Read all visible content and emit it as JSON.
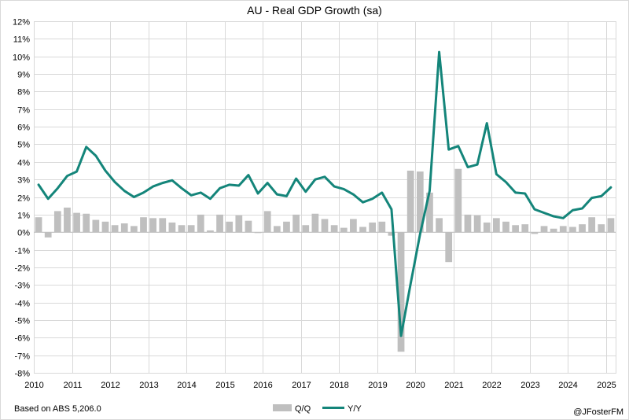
{
  "chart_data": {
    "type": "bar",
    "title": "AU - Real GDP Growth (sa)",
    "xlabel": "",
    "ylabel": "",
    "ylim": [
      -8,
      12
    ],
    "y_ticks": [
      "12%",
      "11%",
      "10%",
      "9%",
      "8%",
      "7%",
      "6%",
      "5%",
      "4%",
      "3%",
      "2%",
      "1%",
      "0%",
      "-1%",
      "-2%",
      "-3%",
      "-4%",
      "-5%",
      "-6%",
      "-7%",
      "-8%"
    ],
    "x_ticks": [
      "2010",
      "2011",
      "2012",
      "2013",
      "2014",
      "2015",
      "2016",
      "2017",
      "2018",
      "2019",
      "2020",
      "2021",
      "2022",
      "2023",
      "2024",
      "2025"
    ],
    "x": [
      "2010Q1",
      "2010Q2",
      "2010Q3",
      "2010Q4",
      "2011Q1",
      "2011Q2",
      "2011Q3",
      "2011Q4",
      "2012Q1",
      "2012Q2",
      "2012Q3",
      "2012Q4",
      "2013Q1",
      "2013Q2",
      "2013Q3",
      "2013Q4",
      "2014Q1",
      "2014Q2",
      "2014Q3",
      "2014Q4",
      "2015Q1",
      "2015Q2",
      "2015Q3",
      "2015Q4",
      "2016Q1",
      "2016Q2",
      "2016Q3",
      "2016Q4",
      "2017Q1",
      "2017Q2",
      "2017Q3",
      "2017Q4",
      "2018Q1",
      "2018Q2",
      "2018Q3",
      "2018Q4",
      "2019Q1",
      "2019Q2",
      "2019Q3",
      "2019Q4",
      "2020Q1",
      "2020Q2",
      "2020Q3",
      "2020Q4",
      "2021Q1",
      "2021Q2",
      "2021Q3",
      "2021Q4",
      "2022Q1",
      "2022Q2",
      "2022Q3",
      "2022Q4",
      "2023Q1",
      "2023Q2",
      "2023Q3",
      "2023Q4",
      "2024Q1",
      "2024Q2",
      "2024Q3",
      "2024Q4",
      "2025Q1"
    ],
    "series": [
      {
        "name": "Q/Q",
        "kind": "bar",
        "color": "#bfbfbf",
        "values": [
          0.85,
          -0.3,
          1.2,
          1.4,
          1.1,
          1.05,
          0.7,
          0.6,
          0.4,
          0.5,
          0.35,
          0.85,
          0.8,
          0.8,
          0.55,
          0.4,
          0.4,
          1.0,
          0.1,
          1.0,
          0.6,
          0.95,
          0.65,
          -0.05,
          1.2,
          0.35,
          0.6,
          1.0,
          0.4,
          1.05,
          0.75,
          0.4,
          0.25,
          0.75,
          0.3,
          0.55,
          0.6,
          -0.2,
          -6.8,
          3.5,
          3.45,
          2.25,
          0.8,
          -1.7,
          3.6,
          1.0,
          0.95,
          0.55,
          0.8,
          0.6,
          0.4,
          0.45,
          -0.1,
          0.35,
          0.2,
          0.35,
          0.3,
          0.45,
          0.85,
          0.45,
          0.8
        ]
      },
      {
        "name": "Y/Y",
        "kind": "line",
        "color": "#14857a",
        "values": [
          2.7,
          1.9,
          2.5,
          3.2,
          3.45,
          4.85,
          4.35,
          3.5,
          2.85,
          2.35,
          2.0,
          2.25,
          2.6,
          2.8,
          2.95,
          2.5,
          2.1,
          2.25,
          1.9,
          2.5,
          2.7,
          2.65,
          3.25,
          2.2,
          2.8,
          2.15,
          2.05,
          3.05,
          2.3,
          3.0,
          3.15,
          2.6,
          2.45,
          2.15,
          1.7,
          1.9,
          2.25,
          1.3,
          -5.9,
          -2.95,
          -0.1,
          2.35,
          10.25,
          4.7,
          4.9,
          3.7,
          3.85,
          6.2,
          3.3,
          2.85,
          2.25,
          2.2,
          1.3,
          1.1,
          0.9,
          0.8,
          1.25,
          1.35,
          1.95,
          2.05,
          2.55
        ]
      }
    ],
    "legend": {
      "position": "bottom-center"
    },
    "grid": true
  },
  "footer": {
    "source": "Based on ABS 5,206.0",
    "credit": "@JFosterFM"
  }
}
